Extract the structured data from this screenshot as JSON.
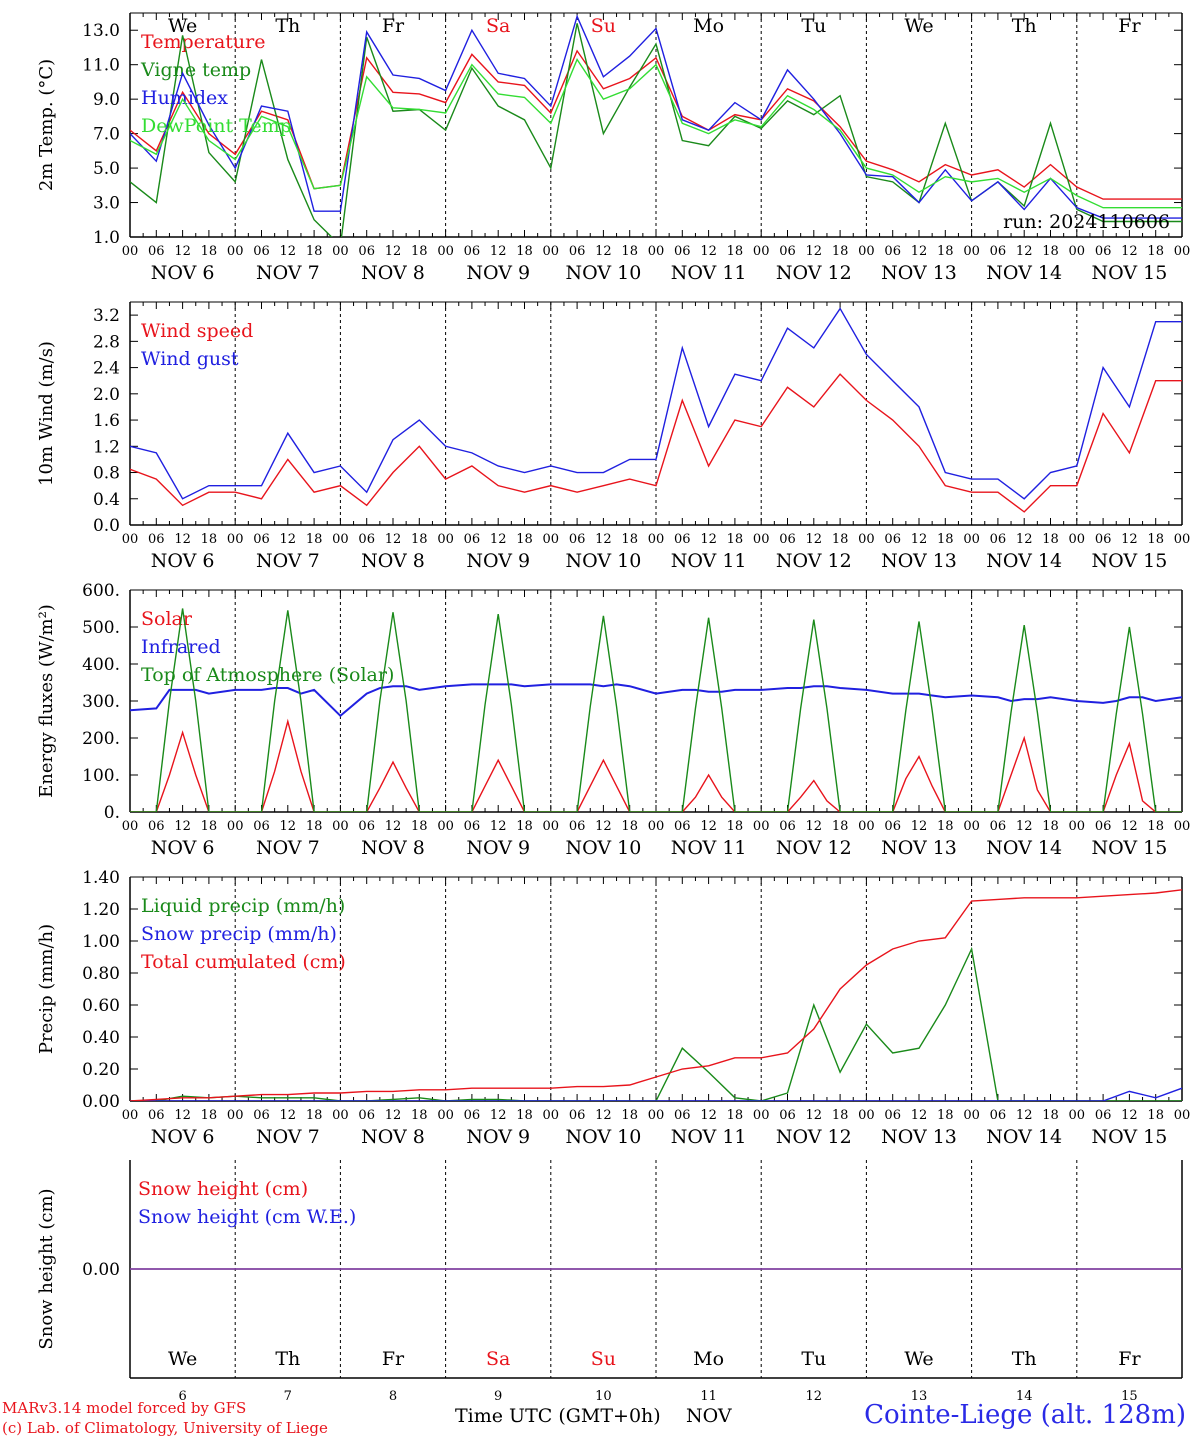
{
  "run_label": "run: 2024110606",
  "date_labels": [
    "NOV  6",
    "NOV  7",
    "NOV  8",
    "NOV  9",
    "NOV 10",
    "NOV 11",
    "NOV 12",
    "NOV 13",
    "NOV 14",
    "NOV 15"
  ],
  "hour_labels": [
    "00",
    "06",
    "12",
    "18"
  ],
  "last_hour_label": "00",
  "weekdays": [
    {
      "label": "We",
      "color": "#000000"
    },
    {
      "label": "Th",
      "color": "#000000"
    },
    {
      "label": "Fr",
      "color": "#000000"
    },
    {
      "label": "Sa",
      "color": "#e8141c"
    },
    {
      "label": "Su",
      "color": "#e8141c"
    },
    {
      "label": "Mo",
      "color": "#000000"
    },
    {
      "label": "Tu",
      "color": "#000000"
    },
    {
      "label": "We",
      "color": "#000000"
    },
    {
      "label": "Th",
      "color": "#000000"
    },
    {
      "label": "Fr",
      "color": "#000000"
    }
  ],
  "day_numbers": [
    "6",
    "7",
    "8",
    "9",
    "10",
    "11",
    "12",
    "13",
    "14",
    "15"
  ],
  "footer": {
    "model": "MARv3.14 model forced by GFS",
    "lab": "(c) Lab. of Climatology, University of Liege",
    "xlabel": "Time UTC (GMT+0h)",
    "month": "NOV",
    "station": "Cointe-Liege (alt. 128m)"
  },
  "colors": {
    "red": "#e8141c",
    "green": "#1a8a1a",
    "blue": "#2020e0",
    "lightgreen": "#33dd33",
    "purple": "#8040a0"
  },
  "chart_data": [
    {
      "type": "line",
      "ylabel": "2m Temp. (°C)",
      "ylim": [
        1.0,
        14.0
      ],
      "yticks": [
        "1.0",
        "3.0",
        "5.0",
        "7.0",
        "9.0",
        "11.0",
        "13.0"
      ],
      "x_hours": [
        0,
        6,
        12,
        18,
        24,
        30,
        36,
        42,
        48,
        54,
        60,
        66,
        72,
        78,
        84,
        90,
        96,
        102,
        108,
        114,
        120,
        126,
        132,
        138,
        144,
        150,
        156,
        162,
        168,
        174,
        180,
        186,
        192,
        198,
        204,
        210,
        216,
        222,
        228,
        234,
        240
      ],
      "series": [
        {
          "name": "Temperature",
          "color": "#e8141c",
          "values": [
            7.2,
            6.0,
            9.4,
            7.0,
            5.8,
            8.3,
            7.8,
            3.8,
            4.0,
            11.4,
            9.4,
            9.3,
            8.8,
            11.6,
            10.0,
            9.8,
            8.2,
            11.8,
            9.6,
            10.2,
            11.4,
            8.0,
            7.2,
            8.1,
            7.8,
            9.6,
            8.9,
            7.4,
            5.4,
            4.9,
            4.2,
            5.2,
            4.6,
            4.9,
            3.9,
            5.2,
            3.9,
            3.2,
            3.2,
            3.2,
            3.2
          ]
        },
        {
          "name": "Vigne temp",
          "color": "#1a8a1a",
          "values": [
            4.2,
            3.0,
            12.7,
            5.9,
            4.2,
            11.3,
            5.5,
            2.0,
            0.5,
            12.6,
            8.3,
            8.4,
            7.2,
            10.8,
            8.6,
            7.8,
            5.0,
            13.4,
            7.0,
            9.7,
            12.2,
            6.6,
            6.3,
            8.0,
            7.3,
            8.9,
            8.1,
            9.2,
            4.5,
            4.2,
            3.0,
            7.6,
            3.1,
            4.2,
            2.8,
            7.6,
            2.6,
            1.9,
            1.9,
            1.9,
            1.9
          ]
        },
        {
          "name": "Humidex",
          "color": "#2020e0",
          "values": [
            7.0,
            5.4,
            10.5,
            7.5,
            5.0,
            8.6,
            8.3,
            2.5,
            2.5,
            12.9,
            10.4,
            10.2,
            9.5,
            13.0,
            10.5,
            10.2,
            8.6,
            13.8,
            10.3,
            11.5,
            13.1,
            7.8,
            7.2,
            8.8,
            7.8,
            10.7,
            9.0,
            7.0,
            4.6,
            4.5,
            3.0,
            4.9,
            3.1,
            4.2,
            2.6,
            4.4,
            2.7,
            2.1,
            2.1,
            2.1,
            2.1
          ]
        },
        {
          "name": "DewPoint Temp",
          "color": "#33dd33",
          "values": [
            6.6,
            5.8,
            9.0,
            6.6,
            5.5,
            8.0,
            7.4,
            3.8,
            4.0,
            10.3,
            8.5,
            8.4,
            8.2,
            11.0,
            9.3,
            9.1,
            7.6,
            11.3,
            9.0,
            9.6,
            11.0,
            7.6,
            7.0,
            7.8,
            7.4,
            9.2,
            8.4,
            7.2,
            5.0,
            4.6,
            3.6,
            4.5,
            4.2,
            4.4,
            3.6,
            4.4,
            3.4,
            2.7,
            2.7,
            2.7,
            2.7
          ]
        }
      ]
    },
    {
      "type": "line",
      "ylabel": "10m Wind (m/s)",
      "ylim": [
        0.0,
        3.4
      ],
      "yticks": [
        "0.0",
        "0.4",
        "0.8",
        "1.2",
        "1.6",
        "2.0",
        "2.4",
        "2.8",
        "3.2"
      ],
      "x_hours": [
        0,
        6,
        12,
        18,
        24,
        30,
        36,
        42,
        48,
        54,
        60,
        66,
        72,
        78,
        84,
        90,
        96,
        102,
        108,
        114,
        120,
        126,
        132,
        138,
        144,
        150,
        156,
        162,
        168,
        174,
        180,
        186,
        192,
        198,
        204,
        210,
        216,
        222,
        228,
        234,
        240
      ],
      "series": [
        {
          "name": "Wind speed",
          "color": "#e8141c",
          "values": [
            0.85,
            0.7,
            0.3,
            0.5,
            0.5,
            0.4,
            1.0,
            0.5,
            0.6,
            0.3,
            0.8,
            1.2,
            0.7,
            0.9,
            0.6,
            0.5,
            0.6,
            0.5,
            0.6,
            0.7,
            0.6,
            1.9,
            0.9,
            1.6,
            1.5,
            2.1,
            1.8,
            2.3,
            1.9,
            1.6,
            1.2,
            0.6,
            0.5,
            0.5,
            0.2,
            0.6,
            0.6,
            1.7,
            1.1,
            2.2,
            2.2
          ]
        },
        {
          "name": "Wind gust",
          "color": "#2020e0",
          "values": [
            1.2,
            1.1,
            0.4,
            0.6,
            0.6,
            0.6,
            1.4,
            0.8,
            0.9,
            0.5,
            1.3,
            1.6,
            1.2,
            1.1,
            0.9,
            0.8,
            0.9,
            0.8,
            0.8,
            1.0,
            1.0,
            2.7,
            1.5,
            2.3,
            2.2,
            3.0,
            2.7,
            3.3,
            2.6,
            2.2,
            1.8,
            0.8,
            0.7,
            0.7,
            0.4,
            0.8,
            0.9,
            2.4,
            1.8,
            3.1,
            3.1
          ]
        }
      ]
    },
    {
      "type": "line",
      "ylabel": "Energy fluxes (W/m²)",
      "ylim": [
        0,
        600
      ],
      "yticks": [
        "0.",
        "100.",
        "200.",
        "300.",
        "400.",
        "500.",
        "600."
      ],
      "x_hours": [
        0,
        6,
        9,
        12,
        15,
        18,
        24,
        30,
        33,
        36,
        39,
        42,
        48,
        54,
        57,
        60,
        63,
        66,
        72,
        78,
        81,
        84,
        87,
        90,
        96,
        102,
        105,
        108,
        111,
        114,
        120,
        126,
        129,
        132,
        135,
        138,
        144,
        150,
        153,
        156,
        159,
        162,
        168,
        174,
        177,
        180,
        183,
        186,
        192,
        198,
        201,
        204,
        207,
        210,
        216,
        222,
        225,
        228,
        231,
        234,
        240
      ],
      "series": [
        {
          "name": "Solar",
          "color": "#e8141c",
          "values": [
            0,
            0,
            100,
            215,
            100,
            0,
            0,
            0,
            110,
            245,
            110,
            0,
            0,
            0,
            65,
            135,
            65,
            0,
            0,
            0,
            70,
            140,
            70,
            0,
            0,
            0,
            70,
            140,
            70,
            0,
            0,
            0,
            40,
            100,
            40,
            0,
            0,
            0,
            40,
            85,
            30,
            0,
            0,
            0,
            90,
            150,
            70,
            0,
            0,
            0,
            100,
            200,
            60,
            0,
            0,
            0,
            100,
            185,
            30,
            0,
            0
          ]
        },
        {
          "name": "Infrared",
          "color": "#2020e0",
          "values": [
            275,
            280,
            330,
            330,
            330,
            320,
            330,
            330,
            335,
            335,
            320,
            330,
            260,
            320,
            335,
            340,
            340,
            330,
            340,
            345,
            345,
            345,
            345,
            340,
            345,
            345,
            345,
            340,
            345,
            340,
            320,
            330,
            330,
            325,
            325,
            330,
            330,
            335,
            335,
            340,
            340,
            335,
            330,
            320,
            320,
            320,
            315,
            310,
            315,
            310,
            300,
            305,
            305,
            310,
            300,
            295,
            300,
            310,
            310,
            300,
            310
          ]
        },
        {
          "name": "Top of Atmosphere (Solar)",
          "color": "#1a8a1a",
          "values": [
            0,
            0,
            300,
            550,
            300,
            0,
            0,
            0,
            300,
            545,
            300,
            0,
            0,
            0,
            300,
            540,
            300,
            0,
            0,
            0,
            290,
            535,
            290,
            0,
            0,
            0,
            285,
            530,
            285,
            0,
            0,
            0,
            280,
            525,
            280,
            0,
            0,
            0,
            280,
            520,
            280,
            0,
            0,
            0,
            275,
            515,
            275,
            0,
            0,
            0,
            270,
            505,
            270,
            0,
            0,
            0,
            265,
            500,
            265,
            0,
            0
          ]
        }
      ]
    },
    {
      "type": "line",
      "ylabel": "Precip (mm/h)",
      "ylim": [
        0.0,
        1.4
      ],
      "yticks": [
        "0.00",
        "0.20",
        "0.40",
        "0.60",
        "0.80",
        "1.00",
        "1.20",
        "1.40"
      ],
      "x_hours": [
        0,
        6,
        12,
        18,
        24,
        30,
        36,
        42,
        48,
        54,
        60,
        66,
        72,
        78,
        84,
        90,
        96,
        102,
        108,
        114,
        120,
        126,
        132,
        138,
        144,
        150,
        156,
        162,
        168,
        174,
        180,
        186,
        192,
        198,
        204,
        210,
        216,
        222,
        228,
        234,
        240
      ],
      "series": [
        {
          "name": "Liquid precip (mm/h)",
          "color": "#1a8a1a",
          "values": [
            0,
            0,
            0.03,
            0.02,
            0.03,
            0.02,
            0.02,
            0.02,
            0,
            0,
            0.01,
            0.02,
            0,
            0.01,
            0.01,
            0,
            0,
            0,
            0,
            0,
            0,
            0.33,
            0.18,
            0.02,
            0,
            0.05,
            0.6,
            0.18,
            0.48,
            0.3,
            0.33,
            0.6,
            0.95,
            0,
            0,
            0,
            0,
            0,
            0,
            0,
            0
          ]
        },
        {
          "name": "Snow precip (mm/h)",
          "color": "#2020e0",
          "values": [
            0,
            0,
            0,
            0,
            0,
            0,
            0,
            0,
            0,
            0,
            0,
            0,
            0,
            0,
            0,
            0,
            0,
            0,
            0,
            0,
            0,
            0,
            0,
            0,
            0,
            0,
            0,
            0,
            0,
            0,
            0,
            0,
            0,
            0,
            0,
            0,
            0,
            0,
            0.06,
            0.02,
            0.08
          ]
        },
        {
          "name": "Total cumulated (cm)",
          "color": "#e8141c",
          "values": [
            0,
            0.01,
            0.02,
            0.02,
            0.03,
            0.04,
            0.04,
            0.05,
            0.05,
            0.06,
            0.06,
            0.07,
            0.07,
            0.08,
            0.08,
            0.08,
            0.08,
            0.09,
            0.09,
            0.1,
            0.15,
            0.2,
            0.22,
            0.27,
            0.27,
            0.3,
            0.45,
            0.7,
            0.85,
            0.95,
            1.0,
            1.02,
            1.25,
            1.26,
            1.27,
            1.27,
            1.27,
            1.28,
            1.29,
            1.3,
            1.32
          ]
        }
      ]
    },
    {
      "type": "line",
      "ylabel": "Snow height (cm)",
      "yticks": [
        "0.00"
      ],
      "x_hours": [
        0,
        240
      ],
      "series": [
        {
          "name": "Snow height (cm)",
          "color": "#e8141c",
          "values": [
            0,
            0
          ]
        },
        {
          "name": "Snow height (cm W.E.)",
          "color": "#2020e0",
          "values": [
            0,
            0
          ]
        }
      ]
    }
  ]
}
